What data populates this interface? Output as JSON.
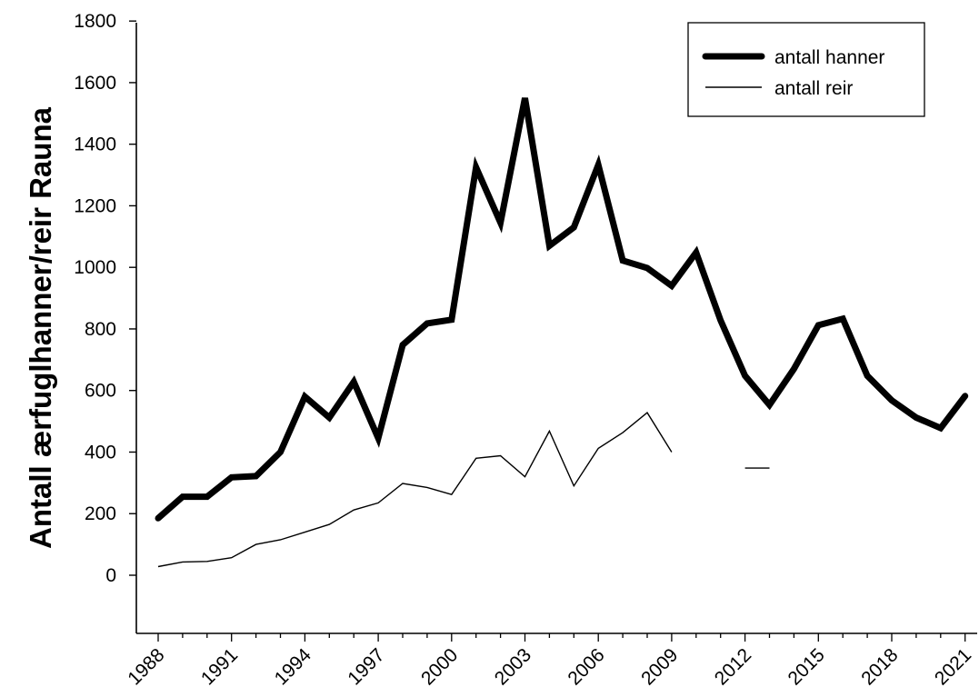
{
  "chart_data": {
    "type": "line",
    "ylabel": "Antall ærfuglhanner/reir Rauna",
    "xlabel": "",
    "xlim": [
      1987,
      2022
    ],
    "ylim": [
      -200,
      1800
    ],
    "y_ticks": [
      0,
      200,
      400,
      600,
      800,
      1000,
      1200,
      1400,
      1600,
      1800
    ],
    "x_ticks": [
      1988,
      1991,
      1994,
      1997,
      2000,
      2003,
      2006,
      2009,
      2012,
      2015,
      2018,
      2021
    ],
    "legend_position": "top-right",
    "series": [
      {
        "name": "antall hanner",
        "line_weight": "thick",
        "points": [
          [
            1988,
            185
          ],
          [
            1989,
            255
          ],
          [
            1990,
            255
          ],
          [
            1991,
            318
          ],
          [
            1992,
            322
          ],
          [
            1993,
            400
          ],
          [
            1994,
            580
          ],
          [
            1995,
            512
          ],
          [
            1996,
            628
          ],
          [
            1997,
            445
          ],
          [
            1998,
            748
          ],
          [
            1999,
            818
          ],
          [
            2000,
            830
          ],
          [
            2001,
            1325
          ],
          [
            2002,
            1145
          ],
          [
            2003,
            1550
          ],
          [
            2004,
            1070
          ],
          [
            2005,
            1130
          ],
          [
            2006,
            1333
          ],
          [
            2007,
            1022
          ],
          [
            2008,
            998
          ],
          [
            2009,
            940
          ],
          [
            2010,
            1048
          ],
          [
            2011,
            828
          ],
          [
            2012,
            648
          ],
          [
            2013,
            553
          ],
          [
            2014,
            670
          ],
          [
            2015,
            812
          ],
          [
            2016,
            833
          ],
          [
            2017,
            648
          ],
          [
            2018,
            568
          ],
          [
            2019,
            512
          ],
          [
            2020,
            478
          ],
          [
            2021,
            582
          ]
        ]
      },
      {
        "name": "antall reir",
        "line_weight": "thin",
        "points": [
          [
            1988,
            28
          ],
          [
            1989,
            43
          ],
          [
            1990,
            45
          ],
          [
            1991,
            57
          ],
          [
            1992,
            100
          ],
          [
            1993,
            115
          ],
          [
            1994,
            140
          ],
          [
            1995,
            165
          ],
          [
            1996,
            212
          ],
          [
            1997,
            235
          ],
          [
            1998,
            298
          ],
          [
            1999,
            285
          ],
          [
            2000,
            262
          ],
          [
            2001,
            380
          ],
          [
            2002,
            388
          ],
          [
            2003,
            320
          ],
          [
            2004,
            468
          ],
          [
            2005,
            290
          ],
          [
            2006,
            412
          ],
          [
            2007,
            463
          ],
          [
            2008,
            528
          ],
          [
            2009,
            400
          ],
          [
            2010,
            null
          ],
          [
            2011,
            null
          ],
          [
            2012,
            348
          ],
          [
            2013,
            348
          ]
        ]
      }
    ]
  }
}
